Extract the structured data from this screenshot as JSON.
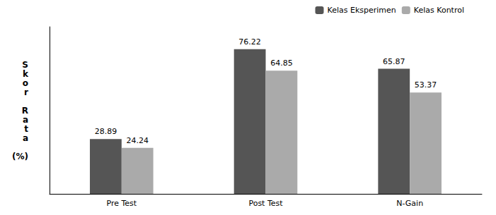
{
  "chart_data": {
    "type": "bar",
    "categories": [
      "Pre Test",
      "Post Test",
      "N-Gain"
    ],
    "series": [
      {
        "name": "Kelas Eksperimen",
        "color": "#555555",
        "values": [
          28.89,
          76.22,
          65.87
        ]
      },
      {
        "name": "Kelas Kontrol",
        "color": "#aaaaaa",
        "values": [
          24.24,
          64.85,
          53.37
        ]
      }
    ],
    "ylabel": "S\nk\no\nr\n\nR\na\nt\na\n\n(%)",
    "ylim": [
      0,
      88
    ],
    "yticks": [],
    "grid": false,
    "legend": "upper right",
    "data_labels": true,
    "tick_labels": "x"
  }
}
